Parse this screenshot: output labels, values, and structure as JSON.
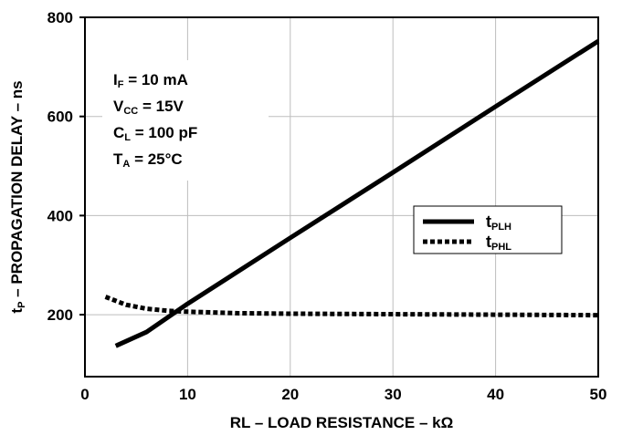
{
  "chart_data": {
    "type": "line",
    "xlabel": "RL – LOAD RESISTANCE – kΩ",
    "ylabel": {
      "base": "t",
      "sub": "P",
      "rest": " – PROPAGATION DELAY – ns"
    },
    "xlim": [
      0,
      50
    ],
    "ylim": [
      75,
      800
    ],
    "x_ticks": [
      0,
      10,
      20,
      30,
      40,
      50
    ],
    "y_ticks": [
      200,
      400,
      600,
      800
    ],
    "grid": true,
    "legend_position": "right",
    "conditions": [
      {
        "base": "I",
        "sub": "F",
        "rest": " = 10 mA"
      },
      {
        "base": "V",
        "sub": "CC",
        "rest": " = 15V"
      },
      {
        "base": "C",
        "sub": "L",
        "rest": " = 100 pF"
      },
      {
        "base": "T",
        "sub": "A",
        "rest": " = 25°C"
      }
    ],
    "series": [
      {
        "name": "tPLH",
        "legend": {
          "base": "t",
          "sub": "PLH"
        },
        "style": "solid",
        "x": [
          3,
          6,
          10,
          20,
          30,
          40,
          50
        ],
        "y": [
          137,
          165,
          222,
          355,
          487,
          620,
          752
        ]
      },
      {
        "name": "tPHL",
        "legend": {
          "base": "t",
          "sub": "PHL"
        },
        "style": "dotted",
        "x": [
          2,
          4,
          6,
          8,
          10,
          15,
          20,
          30,
          40,
          50
        ],
        "y": [
          236,
          220,
          212,
          208,
          206,
          203,
          202,
          201,
          200,
          199
        ]
      }
    ]
  }
}
